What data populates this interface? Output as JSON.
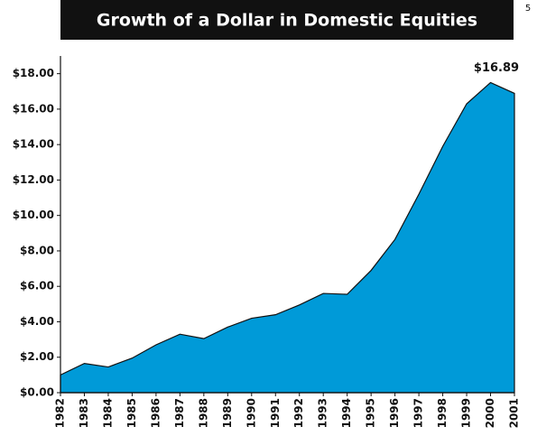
{
  "page_number": "5",
  "chart_data": {
    "type": "area",
    "title": "Growth of a Dollar in Domestic Equities",
    "categories": [
      "1982",
      "1983",
      "1984",
      "1985",
      "1986",
      "1987",
      "1988",
      "1989",
      "1990",
      "1991",
      "1992",
      "1993",
      "1994",
      "1995",
      "1996",
      "1997",
      "1998",
      "1999",
      "2000",
      "2001"
    ],
    "values": [
      1.0,
      1.65,
      1.45,
      1.95,
      2.7,
      3.3,
      3.05,
      3.7,
      4.2,
      4.4,
      4.95,
      5.6,
      5.55,
      6.9,
      8.65,
      11.2,
      13.9,
      16.3,
      17.5,
      16.89
    ],
    "value_labels": [
      null,
      null,
      null,
      null,
      null,
      null,
      null,
      null,
      null,
      null,
      null,
      null,
      null,
      null,
      null,
      null,
      null,
      null,
      null,
      "$16.89"
    ],
    "color": "#009ad8",
    "ylim": [
      0,
      19
    ],
    "yticks": [
      {
        "value": 0,
        "label": "$0.00"
      },
      {
        "value": 2,
        "label": "$2.00"
      },
      {
        "value": 4,
        "label": "$4.00"
      },
      {
        "value": 6,
        "label": "$6.00"
      },
      {
        "value": 8,
        "label": "$8.00"
      },
      {
        "value": 10,
        "label": "$10.00"
      },
      {
        "value": 12,
        "label": "$12.00"
      },
      {
        "value": 14,
        "label": "$14.00"
      },
      {
        "value": 16,
        "label": "$16.00"
      },
      {
        "value": 18,
        "label": "$18.00"
      }
    ],
    "grid": false
  }
}
